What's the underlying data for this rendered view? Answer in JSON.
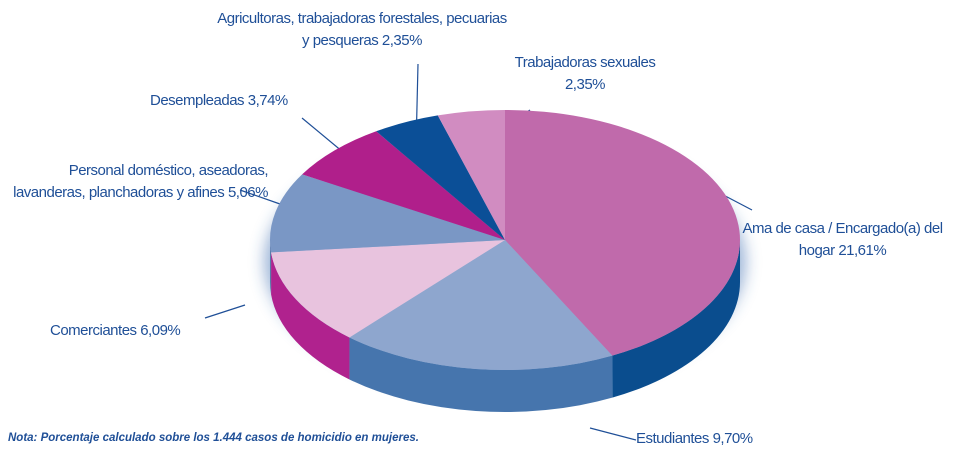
{
  "chart_data": {
    "type": "pie3d",
    "categories": [
      "Ama de casa / Encargado(a) del hogar",
      "Estudiantes",
      "Comerciantes",
      "Personal doméstico, aseadoras, lavanderas, planchadoras y afines",
      "Desempleadas",
      "Agricultoras, trabajadoras forestales, pecuarias y pesqueras",
      "Trabajadoras sexuales"
    ],
    "values": [
      21.61,
      9.7,
      6.09,
      5.06,
      3.74,
      2.35,
      2.35
    ],
    "value_labels": [
      "21,61%",
      "9,70%",
      "6,09%",
      "5,06%",
      "3,74%",
      "2,35%",
      "2,35%"
    ],
    "colors": [
      "#c06aab",
      "#8ea6ce",
      "#e8c3de",
      "#7a97c5",
      "#b01f8b",
      "#0b4f97",
      "#d18cc1"
    ],
    "side_colors": [
      "#0a4d8e",
      "#4675ad",
      "#b0228e",
      "#5a78a8",
      "#8c1670",
      "#083a72",
      "#a8609a"
    ],
    "note": "Nota: Porcentaje calculado sobre los 1.444 casos de homicidio en mujeres."
  }
}
